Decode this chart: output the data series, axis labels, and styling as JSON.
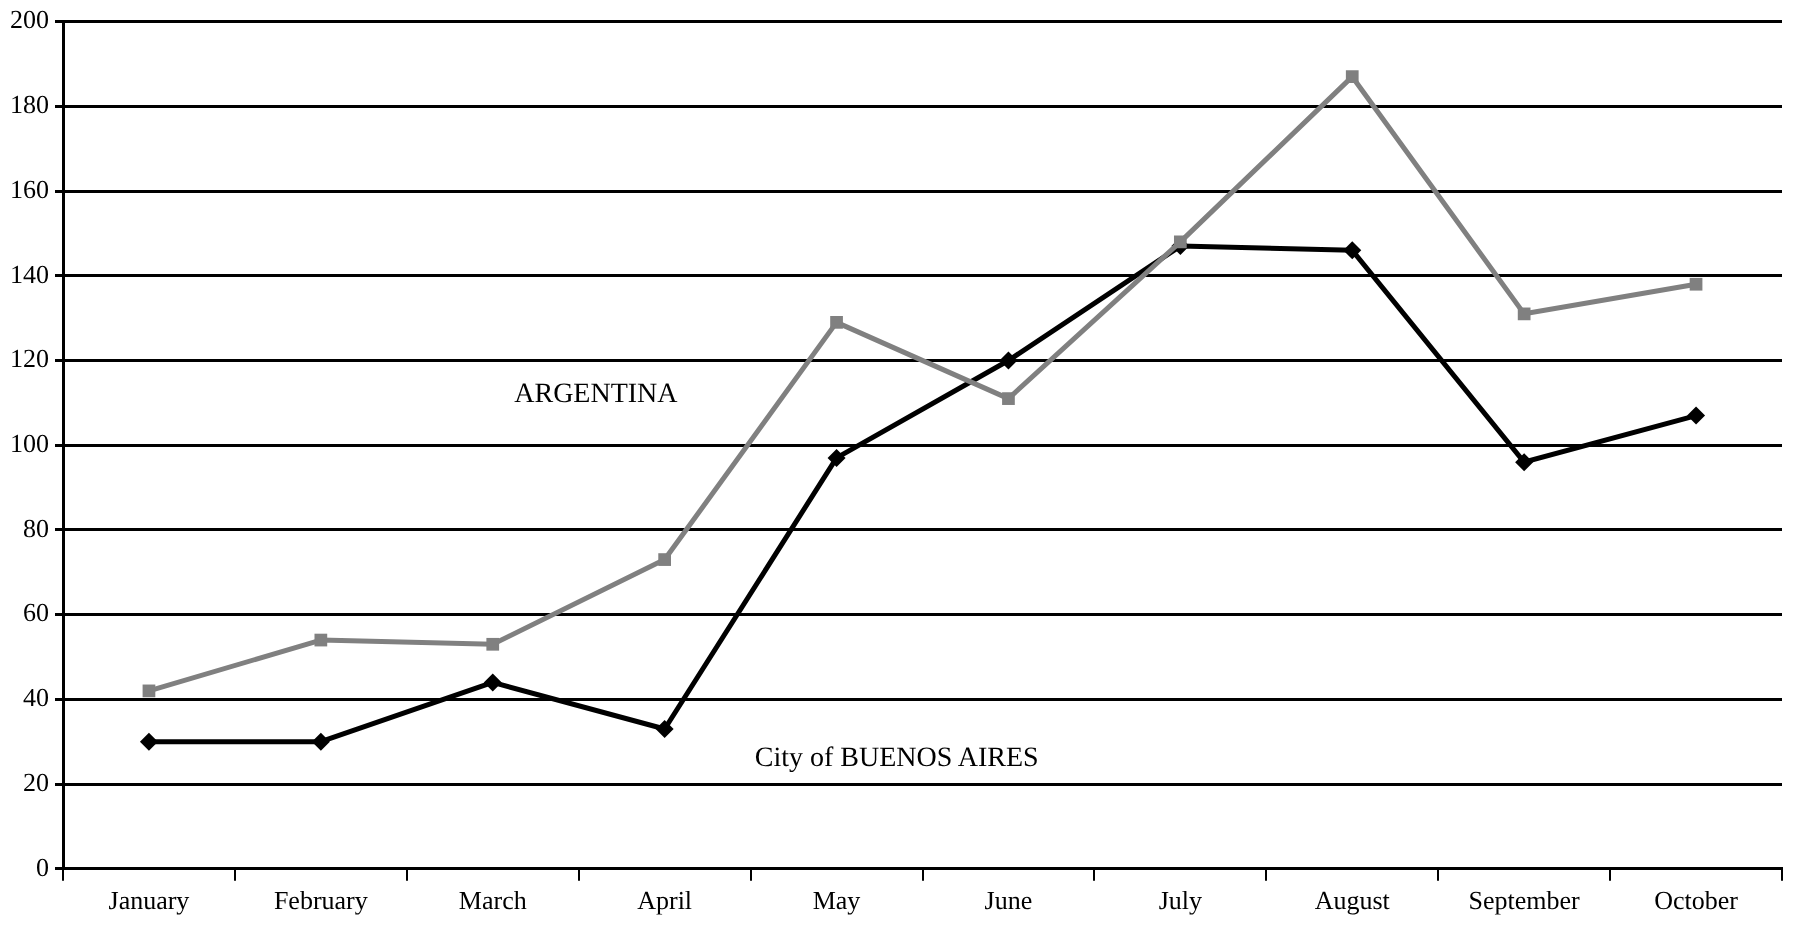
{
  "chart_data": {
    "type": "line",
    "categories": [
      "January",
      "February",
      "March",
      "April",
      "May",
      "June",
      "July",
      "August",
      "September",
      "October"
    ],
    "series": [
      {
        "name": "ARGENTINA",
        "color": "#808080",
        "marker": "square",
        "values": [
          42,
          54,
          53,
          73,
          129,
          111,
          148,
          187,
          131,
          138
        ]
      },
      {
        "name": "City of BUENOS AIRES",
        "color": "#000000",
        "marker": "diamond",
        "values": [
          30,
          30,
          44,
          33,
          97,
          120,
          147,
          146,
          96,
          107
        ]
      }
    ],
    "ylim": [
      0,
      200
    ],
    "yticks": [
      0,
      20,
      40,
      60,
      80,
      100,
      120,
      140,
      160,
      180,
      200
    ],
    "grid": "y",
    "legend": false
  }
}
